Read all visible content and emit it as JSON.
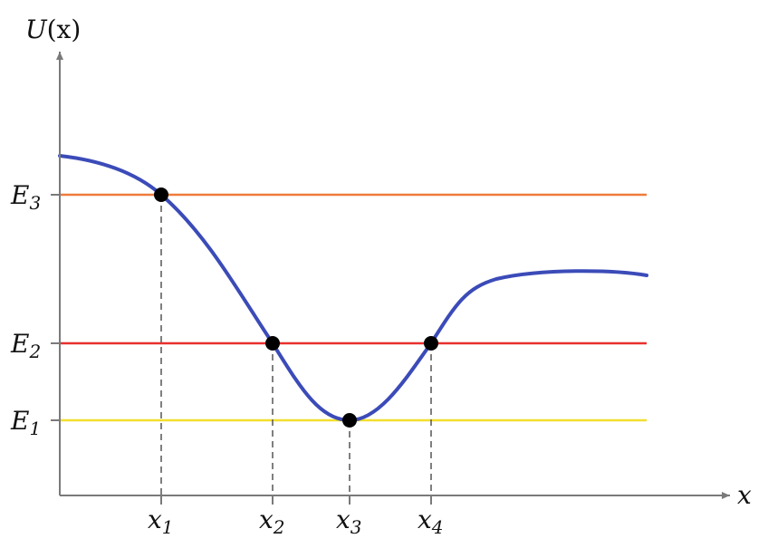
{
  "axes": {
    "y_label_main": "U",
    "y_label_arg": "(x)",
    "x_label": "x",
    "axis_color": "#7a7a7a"
  },
  "energy_levels": [
    {
      "base": "E",
      "sub": "3",
      "color": "#ee7b3a"
    },
    {
      "base": "E",
      "sub": "2",
      "color": "#e8302d"
    },
    {
      "base": "E",
      "sub": "1",
      "color": "#f2de2e"
    }
  ],
  "positions": [
    {
      "base": "x",
      "sub": "1"
    },
    {
      "base": "x",
      "sub": "2"
    },
    {
      "base": "x",
      "sub": "3"
    },
    {
      "base": "x",
      "sub": "4"
    }
  ],
  "curve": {
    "color": "#3b4bb8"
  },
  "point_color": "#000000",
  "dashed_line_color": "#555555"
}
